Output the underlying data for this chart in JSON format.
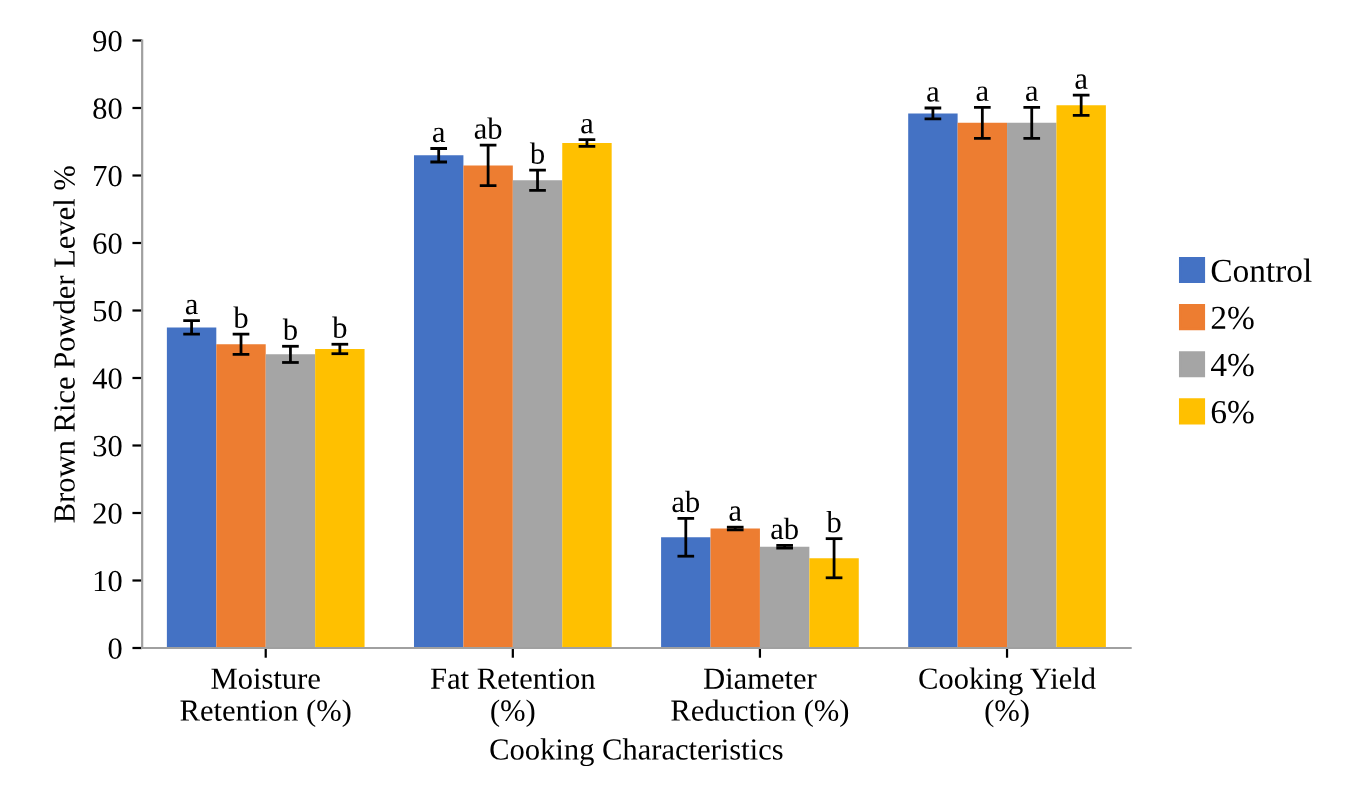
{
  "chart_data": {
    "type": "bar",
    "xlabel": "Cooking Characteristics",
    "ylabel": "Brown Rice Powder Level %",
    "categories": [
      "Moisture\nRetention (%)",
      "Fat Retention\n(%)",
      "Diameter\nReduction (%)",
      "Cooking Yield\n(%)"
    ],
    "series": [
      {
        "name": "Control",
        "color": "#4472c4",
        "values": [
          47.5,
          73.0,
          16.4,
          79.2
        ],
        "errors": [
          1.0,
          1.0,
          2.8,
          0.8
        ],
        "value_labels": [
          "a",
          "a",
          "ab",
          "a"
        ]
      },
      {
        "name": "2%",
        "color": "#ed7d31",
        "values": [
          45.0,
          71.5,
          17.7,
          77.8
        ],
        "errors": [
          1.5,
          3.0,
          0.2,
          2.3
        ],
        "value_labels": [
          "b",
          "ab",
          "a",
          "a"
        ]
      },
      {
        "name": "4%",
        "color": "#a5a5a5",
        "values": [
          43.5,
          69.3,
          15.0,
          77.8
        ],
        "errors": [
          1.2,
          1.5,
          0.2,
          2.3
        ],
        "value_labels": [
          "b",
          "b",
          "ab",
          "a"
        ]
      },
      {
        "name": "6%",
        "color": "#ffc000",
        "values": [
          44.3,
          74.8,
          13.3,
          80.4
        ],
        "errors": [
          0.7,
          0.5,
          2.9,
          1.5
        ],
        "value_labels": [
          "b",
          "a",
          "b",
          "a"
        ]
      }
    ],
    "ylim": [
      0,
      90
    ],
    "yticks": [
      0,
      10,
      20,
      30,
      40,
      50,
      60,
      70,
      80,
      90
    ],
    "grid": false,
    "legend": "right"
  }
}
